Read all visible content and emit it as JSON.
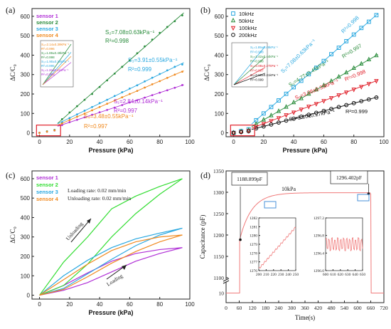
{
  "chart_data": [
    {
      "panel": "(a)",
      "type": "scatter",
      "xlabel": "Pressure (kPa)",
      "ylabel": "ΔC/C₀",
      "xlim": [
        -5,
        100
      ],
      "ylim": [
        -20,
        640
      ],
      "xticks": [
        0,
        20,
        40,
        60,
        80,
        100
      ],
      "yticks": [
        0,
        100,
        200,
        300,
        400,
        500,
        600
      ],
      "legend": [
        "sensor 1",
        "sensor 2",
        "sensor 3",
        "sensor 4"
      ],
      "colors": [
        "#b02fd6",
        "#2a8c3c",
        "#2aa8e0",
        "#f08a20"
      ],
      "series": [
        {
          "name": "sensor 1",
          "x": [
            0,
            5,
            10,
            15,
            20,
            25,
            30,
            35,
            40,
            45,
            50,
            55,
            60,
            65,
            70,
            75,
            80,
            85,
            90,
            95
          ],
          "y": [
            0,
            6,
            12,
            40,
            55,
            67,
            80,
            93,
            106,
            118,
            130,
            143,
            156,
            168,
            181,
            194,
            207,
            219,
            232,
            246
          ]
        },
        {
          "name": "sensor 2",
          "x": [
            0,
            5,
            10,
            15,
            20,
            25,
            30,
            35,
            40,
            45,
            50,
            55,
            60,
            65,
            70,
            75,
            80,
            85,
            90,
            95
          ],
          "y": [
            0,
            8,
            15,
            70,
            105,
            137,
            170,
            200,
            236,
            270,
            305,
            340,
            374,
            410,
            445,
            480,
            515,
            545,
            575,
            605
          ]
        },
        {
          "name": "sensor 3",
          "x": [
            0,
            5,
            10,
            15,
            20,
            25,
            30,
            35,
            40,
            45,
            50,
            55,
            60,
            65,
            70,
            75,
            80,
            85,
            90,
            95
          ],
          "y": [
            0,
            7,
            14,
            55,
            76,
            95,
            114,
            133,
            153,
            170,
            190,
            209,
            228,
            245,
            265,
            284,
            303,
            322,
            340,
            352
          ]
        },
        {
          "name": "sensor 4",
          "x": [
            0,
            5,
            10,
            15,
            20,
            25,
            30,
            35,
            40,
            45,
            50,
            55,
            60,
            65,
            70,
            75,
            80,
            85,
            90,
            95
          ],
          "y": [
            0,
            6,
            13,
            48,
            66,
            83,
            99,
            116,
            133,
            150,
            166,
            183,
            200,
            216,
            233,
            250,
            266,
            283,
            300,
            315
          ]
        }
      ],
      "annotations": [
        {
          "text": "S₂=7.08±0.63kPa⁻¹",
          "color": "#2a8c3c"
        },
        {
          "text": "R²=0.998",
          "color": "#2a8c3c"
        },
        {
          "text": "S₃=3.91±0.55kPa⁻¹",
          "color": "#2aa8e0"
        },
        {
          "text": "R²=0.999",
          "color": "#2aa8e0"
        },
        {
          "text": "S₁=2.84±0.14kPa⁻¹",
          "color": "#b02fd6"
        },
        {
          "text": "R²=0.997",
          "color": "#b02fd6"
        },
        {
          "text": "S₄=3.48±0.55kPa⁻¹",
          "color": "#f08a20"
        },
        {
          "text": "R²=0.997",
          "color": "#f08a20"
        }
      ],
      "inset_labels": [
        {
          "text": "S₄=2.14±0.39kPa⁻¹",
          "color": "#f08a20"
        },
        {
          "text": "R²=0.996",
          "color": "#f08a20"
        },
        {
          "text": "S₂=1.89±0.49kPa⁻¹",
          "color": "#2a8c3c"
        },
        {
          "text": "R²=0.998",
          "color": "#2a8c3c"
        },
        {
          "text": "S₃=1.90±0.29kPa⁻¹",
          "color": "#2aa8e0"
        },
        {
          "text": "R²=0.995",
          "color": "#2aa8e0"
        },
        {
          "text": "S₁=1.26±0.11kPa⁻¹",
          "color": "#b02fd6"
        },
        {
          "text": "R²=0.993",
          "color": "#b02fd6"
        }
      ]
    },
    {
      "panel": "(b)",
      "type": "scatter",
      "xlabel": "Pressure (kPa)",
      "ylabel": "ΔC/C₀",
      "xlim": [
        -5,
        100
      ],
      "ylim": [
        -20,
        640
      ],
      "xticks": [
        0,
        20,
        40,
        60,
        80,
        100
      ],
      "yticks": [
        0,
        100,
        200,
        300,
        400,
        500,
        600
      ],
      "legend": [
        "10kHz",
        "50kHz",
        "100kHz",
        "200kHz"
      ],
      "colors": [
        "#2aa8e0",
        "#2a8c3c",
        "#e0202a",
        "#111111"
      ],
      "series": [
        {
          "name": "10kHz",
          "x": [
            0,
            5,
            10,
            15,
            20,
            25,
            30,
            35,
            40,
            45,
            50,
            55,
            60,
            65,
            70,
            75,
            80,
            85,
            90,
            95
          ],
          "y": [
            0,
            9,
            18,
            65,
            100,
            133,
            167,
            201,
            235,
            268,
            302,
            335,
            370,
            405,
            438,
            472,
            506,
            540,
            572,
            606
          ]
        },
        {
          "name": "50kHz",
          "x": [
            0,
            5,
            10,
            15,
            20,
            25,
            30,
            35,
            40,
            45,
            50,
            55,
            60,
            65,
            70,
            75,
            80,
            85,
            90,
            95
          ],
          "y": [
            0,
            7,
            14,
            45,
            67,
            89,
            111,
            133,
            156,
            177,
            200,
            222,
            244,
            266,
            288,
            310,
            333,
            355,
            377,
            398
          ]
        },
        {
          "name": "100kHz",
          "x": [
            0,
            5,
            10,
            15,
            20,
            25,
            30,
            35,
            40,
            45,
            50,
            55,
            60,
            65,
            70,
            75,
            80,
            85,
            90,
            95
          ],
          "y": [
            0,
            5,
            11,
            32,
            47,
            62,
            77,
            92,
            106,
            121,
            136,
            150,
            165,
            180,
            195,
            209,
            224,
            238,
            253,
            268
          ]
        },
        {
          "name": "200kHz",
          "x": [
            0,
            5,
            10,
            15,
            20,
            25,
            30,
            35,
            40,
            45,
            50,
            55,
            60,
            65,
            70,
            75,
            80,
            85,
            90,
            95
          ],
          "y": [
            0,
            4,
            8,
            23,
            33,
            43,
            53,
            63,
            73,
            83,
            93,
            103,
            113,
            123,
            133,
            143,
            153,
            163,
            172,
            182
          ]
        }
      ],
      "annotations": [
        {
          "text": "S₁=7.08±0.63kPa⁻¹",
          "color": "#2aa8e0"
        },
        {
          "text": "R²=0.998",
          "color": "#2aa8e0"
        },
        {
          "text": "S₂=4.77±0.45kPa⁻¹",
          "color": "#2a8c3c"
        },
        {
          "text": "R²=0.997",
          "color": "#2a8c3c"
        },
        {
          "text": "S₃=3.06±0.33kPa⁻¹",
          "color": "#e0202a"
        },
        {
          "text": "R²=0.998",
          "color": "#e0202a"
        },
        {
          "text": "S₄=2.10±0.27kPa⁻¹",
          "color": "#111111"
        },
        {
          "text": "R²=0.999",
          "color": "#111111"
        }
      ],
      "inset_labels": [
        {
          "text": "S₁=1.89±0.49kPa⁻¹",
          "color": "#2aa8e0"
        },
        {
          "text": "R²=0.998",
          "color": "#2aa8e0"
        },
        {
          "text": "S₂=1.42±0.44kPa⁻¹",
          "color": "#2a8c3c"
        },
        {
          "text": "R²=0.998",
          "color": "#2a8c3c"
        },
        {
          "text": "S₃=0.88±0.27kPa⁻¹",
          "color": "#e0202a"
        },
        {
          "text": "R²=0.997",
          "color": "#e0202a"
        },
        {
          "text": "S₄=0.58±0.21kPa⁻¹",
          "color": "#111111"
        },
        {
          "text": "R²=0.999",
          "color": "#111111"
        }
      ]
    },
    {
      "panel": "(c)",
      "type": "line",
      "xlabel": "Pressure (kPa)",
      "ylabel": "ΔC/C₀",
      "xlim": [
        -5,
        100
      ],
      "ylim": [
        -20,
        640
      ],
      "xticks": [
        0,
        20,
        40,
        60,
        80,
        100
      ],
      "yticks": [
        0,
        100,
        200,
        300,
        400,
        500,
        600
      ],
      "legend": [
        "sensor 1",
        "sensor 2",
        "sensor 3",
        "sensor 4"
      ],
      "colors": [
        "#b02fd6",
        "#33dd33",
        "#2aa8e0",
        "#f08a20"
      ],
      "rate_labels": [
        "Loading rate: 0.02 mm/min",
        "Unloading rate: 0.02 mm/min"
      ],
      "arrows": [
        "Unloading",
        "Loading"
      ],
      "series": [
        {
          "name": "sensor 1",
          "loading": {
            "x": [
              0,
              16,
              32,
              48,
              64,
              80,
              95
            ],
            "y": [
              0,
              25,
              65,
              120,
              175,
              215,
              245
            ]
          },
          "unloading": {
            "x": [
              95,
              80,
              64,
              48,
              32,
              16,
              0
            ],
            "y": [
              245,
              235,
              215,
              175,
              115,
              50,
              0
            ]
          }
        },
        {
          "name": "sensor 2",
          "loading": {
            "x": [
              0,
              16,
              32,
              48,
              64,
              80,
              95
            ],
            "y": [
              0,
              50,
              160,
              300,
              420,
              520,
              600
            ]
          },
          "unloading": {
            "x": [
              95,
              80,
              64,
              48,
              32,
              16,
              0
            ],
            "y": [
              600,
              560,
              510,
              445,
              300,
              170,
              0
            ]
          }
        },
        {
          "name": "sensor 3",
          "loading": {
            "x": [
              0,
              16,
              32,
              48,
              64,
              80,
              95
            ],
            "y": [
              0,
              35,
              110,
              185,
              255,
              310,
              345
            ]
          },
          "unloading": {
            "x": [
              95,
              80,
              64,
              48,
              32,
              16,
              0
            ],
            "y": [
              345,
              320,
              290,
              245,
              180,
              100,
              0
            ]
          }
        },
        {
          "name": "sensor 4",
          "loading": {
            "x": [
              0,
              16,
              32,
              48,
              64,
              80,
              95
            ],
            "y": [
              0,
              30,
              95,
              165,
              225,
              275,
              310
            ]
          },
          "unloading": {
            "x": [
              95,
              80,
              64,
              48,
              32,
              16,
              0
            ],
            "y": [
              310,
              300,
              275,
              230,
              160,
              80,
              0
            ]
          }
        }
      ]
    },
    {
      "panel": "(d)",
      "type": "line",
      "xlabel": "Time(s)",
      "ylabel": "Capacitance (pF)",
      "xlim": [
        0,
        720
      ],
      "ylim_lower": [
        5,
        15
      ],
      "ylim_upper": [
        1100,
        1350
      ],
      "xticks": [
        0,
        60,
        120,
        180,
        240,
        300,
        360,
        420,
        480,
        540,
        600,
        660,
        720
      ],
      "yticks_upper": [
        1100,
        1150,
        1200,
        1250,
        1300,
        1350
      ],
      "yticks_lower": [
        10
      ],
      "series_label": "10kPa",
      "color": "#f07a7a",
      "points": [
        {
          "label": "1188.899pF",
          "x": 65,
          "y": 1188.899
        },
        {
          "label": "1296.402pF",
          "x": 650,
          "y": 1296.402
        }
      ],
      "inset1": {
        "xlim": [
          200,
          250
        ],
        "ylim": [
          1276,
          1282
        ],
        "xticks": [
          200,
          210,
          220,
          230,
          240,
          250
        ],
        "yticks": [
          1276,
          1277,
          1278,
          1279,
          1280,
          1281,
          1282
        ]
      },
      "inset2": {
        "xlim": [
          600,
          650
        ],
        "ylim": [
          1296.0,
          1297.2
        ],
        "xticks": [
          600,
          610,
          620,
          630,
          640,
          650
        ],
        "yticks": [
          1296.0,
          1296.4,
          1296.8,
          1297.2
        ]
      }
    }
  ]
}
